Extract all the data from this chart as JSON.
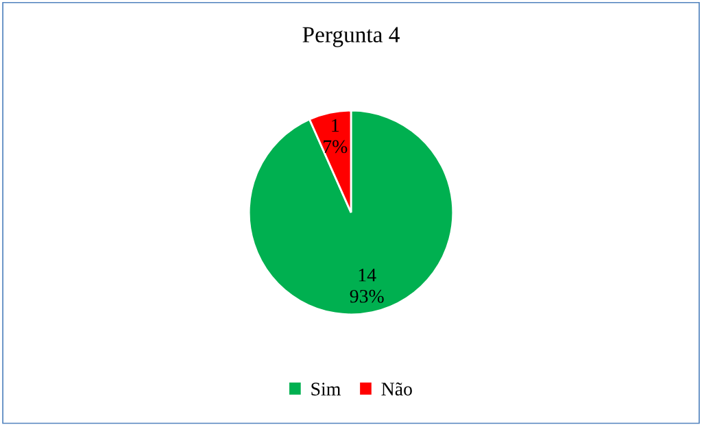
{
  "chart_data": {
    "type": "pie",
    "title": "Pergunta 4",
    "categories": [
      "Sim",
      "Não"
    ],
    "values": [
      14,
      1
    ],
    "colors": [
      "#00b050",
      "#ff0000"
    ],
    "value_labels": [
      "14\n93%",
      "1\n7%"
    ],
    "legend": "bottom"
  }
}
